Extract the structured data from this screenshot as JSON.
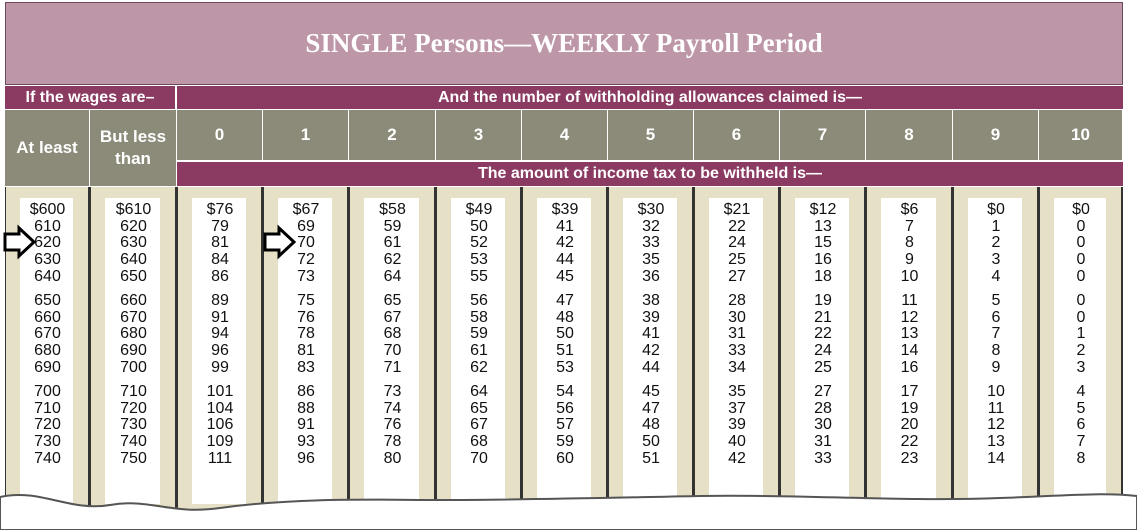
{
  "title": "SINGLE Persons—WEEKLY Payroll Period",
  "wages_header": "If the wages are–",
  "allowances_header": "And the number of withholding allowances claimed is—",
  "wage_columns": [
    "At least",
    "But less than"
  ],
  "allowances": [
    0,
    1,
    2,
    3,
    4,
    5,
    6,
    7,
    8,
    9,
    10
  ],
  "subheader": "The amount  of income tax to be withheld is—",
  "table": {
    "rows": [
      [
        "$600",
        "$610",
        "$76",
        "$67",
        "$58",
        "$49",
        "$39",
        "$30",
        "$21",
        "$12",
        "$6",
        "$0",
        "$0"
      ],
      [
        610,
        620,
        79,
        69,
        59,
        50,
        41,
        32,
        22,
        13,
        7,
        1,
        0
      ],
      [
        620,
        630,
        81,
        70,
        61,
        52,
        42,
        33,
        24,
        15,
        8,
        2,
        0
      ],
      [
        630,
        640,
        84,
        72,
        62,
        53,
        44,
        35,
        25,
        16,
        9,
        3,
        0
      ],
      [
        640,
        650,
        86,
        73,
        64,
        55,
        45,
        36,
        27,
        18,
        10,
        4,
        0
      ],
      [
        650,
        660,
        89,
        75,
        65,
        56,
        47,
        38,
        28,
        19,
        11,
        5,
        0
      ],
      [
        660,
        670,
        91,
        76,
        67,
        58,
        48,
        39,
        30,
        21,
        12,
        6,
        0
      ],
      [
        670,
        680,
        94,
        78,
        68,
        59,
        50,
        41,
        31,
        22,
        13,
        7,
        1
      ],
      [
        680,
        690,
        96,
        81,
        70,
        61,
        51,
        42,
        33,
        24,
        14,
        8,
        2
      ],
      [
        690,
        700,
        99,
        83,
        71,
        62,
        53,
        44,
        34,
        25,
        16,
        9,
        3
      ],
      [
        700,
        710,
        101,
        86,
        73,
        64,
        54,
        45,
        35,
        27,
        17,
        10,
        4
      ],
      [
        710,
        720,
        104,
        88,
        74,
        65,
        56,
        47,
        37,
        28,
        19,
        11,
        5
      ],
      [
        720,
        730,
        106,
        91,
        76,
        67,
        57,
        48,
        39,
        30,
        20,
        12,
        6
      ],
      [
        730,
        740,
        109,
        93,
        78,
        68,
        59,
        50,
        40,
        31,
        22,
        13,
        7
      ],
      [
        740,
        750,
        111,
        96,
        80,
        70,
        60,
        51,
        42,
        33,
        23,
        14,
        8
      ]
    ]
  }
}
